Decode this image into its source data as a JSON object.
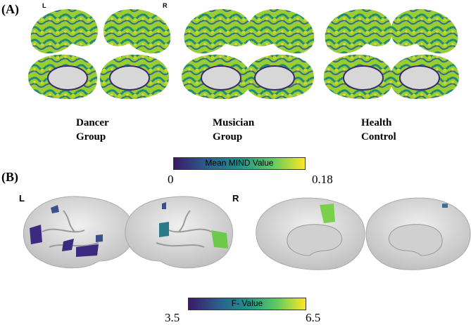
{
  "panel_a": {
    "label": "(A)",
    "left_tag": "L",
    "right_tag": "R",
    "groups": [
      {
        "line1": "Dancer",
        "line2": "Group"
      },
      {
        "line1": "Musician",
        "line2": "Group"
      },
      {
        "line1": "Health",
        "line2": "Control"
      }
    ],
    "colorbar": {
      "title": "Mean MIND Value",
      "min": "0",
      "max": "0.18",
      "colors": [
        "#3b1a68",
        "#2c5d8c",
        "#21918c",
        "#5ec962",
        "#fde725"
      ]
    }
  },
  "panel_b": {
    "label": "(B)",
    "left_tag": "L",
    "right_tag": "R",
    "colorbar": {
      "title": "F- Value",
      "min": "3.5",
      "max": "6.5",
      "colors": [
        "#3b1a68",
        "#2c5d8c",
        "#21918c",
        "#5ec962",
        "#fde725"
      ]
    }
  }
}
